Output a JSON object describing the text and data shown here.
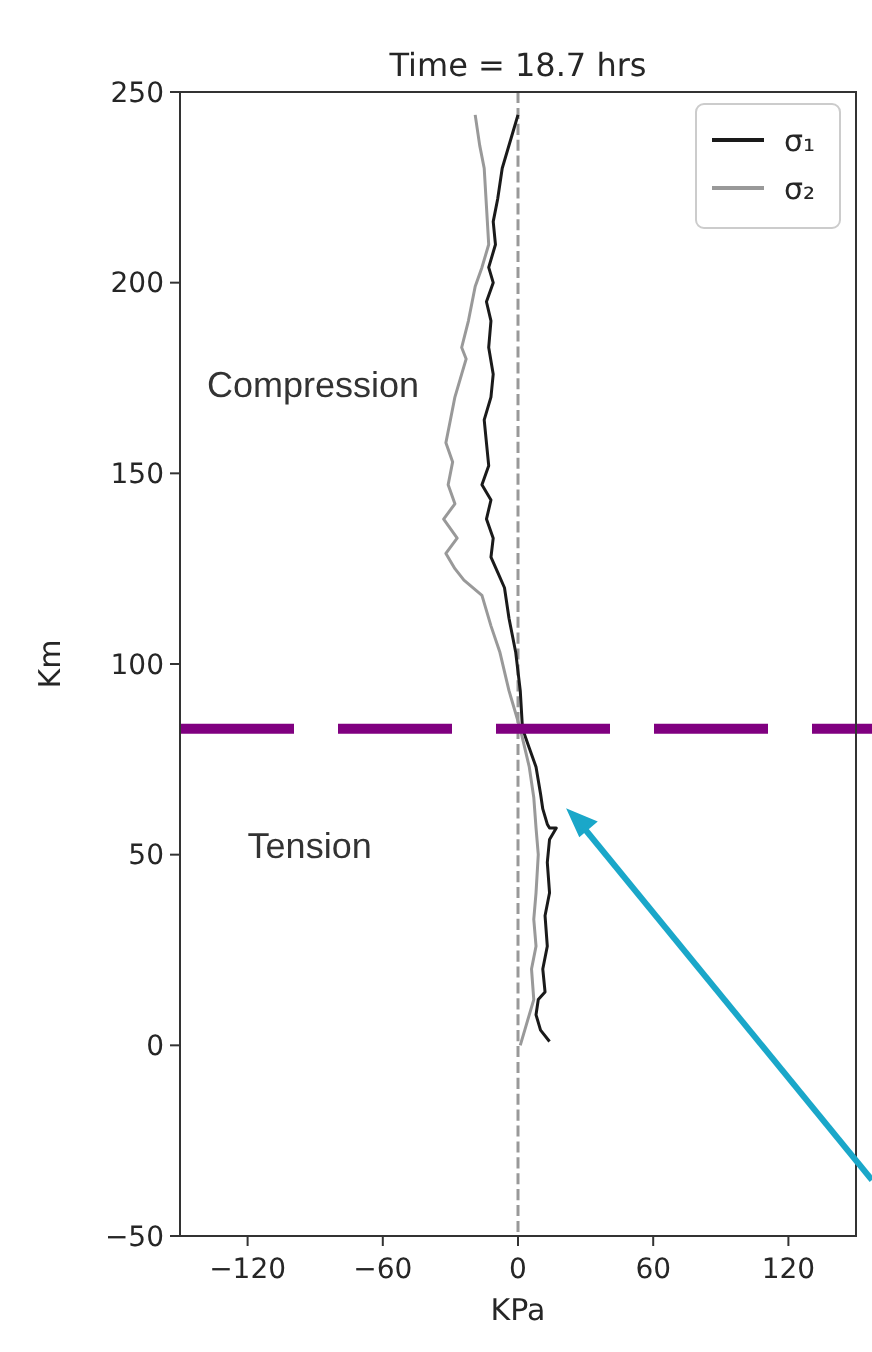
{
  "chart_data": {
    "type": "line",
    "title": "Time = 18.7 hrs",
    "xlabel": "KPa",
    "ylabel": "Km",
    "series": [
      {
        "name": "σ₁",
        "color": "#1a1a1a",
        "x": [
          0,
          -3,
          -7,
          -9,
          -11,
          -10,
          -13,
          -11,
          -14,
          -12,
          -13,
          -11,
          -12,
          -15,
          -14,
          -13,
          -16,
          -12,
          -14,
          -11,
          -12,
          -9,
          -6,
          -4,
          -1,
          1,
          2,
          5,
          8,
          10,
          11,
          13,
          14,
          17,
          14,
          13,
          14,
          12,
          13,
          11,
          12,
          9,
          8,
          10,
          14
        ],
        "values": [
          244,
          238,
          230,
          222,
          216,
          210,
          204,
          200,
          195,
          190,
          183,
          176,
          170,
          164,
          158,
          152,
          147,
          143,
          138,
          133,
          128,
          124,
          120,
          112,
          103,
          93,
          83,
          78,
          73,
          66,
          62,
          58,
          57,
          57,
          54,
          48,
          40,
          34,
          26,
          20,
          14,
          12,
          8,
          4,
          1
        ]
      },
      {
        "name": "σ₂",
        "color": "#999999",
        "x": [
          -19,
          -17,
          -15,
          -14,
          -13,
          -16,
          -19,
          -22,
          -25,
          -23,
          -25,
          -28,
          -30,
          -32,
          -29,
          -31,
          -28,
          -33,
          -27,
          -32,
          -28,
          -24,
          -16,
          -12,
          -8,
          -4,
          1,
          3,
          5,
          7,
          8,
          9,
          8,
          7,
          8,
          6,
          7,
          5,
          3,
          1
        ],
        "values": [
          244,
          236,
          230,
          220,
          210,
          204,
          199,
          190,
          183,
          180,
          176,
          170,
          164,
          158,
          153,
          147,
          142,
          138,
          133,
          129,
          125,
          122,
          118,
          110,
          103,
          93,
          83,
          78,
          73,
          65,
          57,
          50,
          40,
          33,
          26,
          20,
          12,
          8,
          4,
          0
        ]
      }
    ],
    "xlim": [
      -150,
      150
    ],
    "xticks": [
      -120,
      -60,
      0,
      60,
      120
    ],
    "ylim": [
      -50,
      250
    ],
    "yticks": [
      -50,
      0,
      50,
      100,
      150,
      200,
      250
    ],
    "ref_lines": [
      {
        "axis": "y",
        "value": 83,
        "color": "#800080",
        "line_style": "dashed"
      },
      {
        "axis": "x",
        "value": 0,
        "color": "#999999",
        "line_style": "dashed"
      }
    ],
    "annotations": [
      "Compression",
      "Tension"
    ],
    "legend": "top right",
    "grid": false,
    "marker": "none",
    "line_style": "solid"
  }
}
